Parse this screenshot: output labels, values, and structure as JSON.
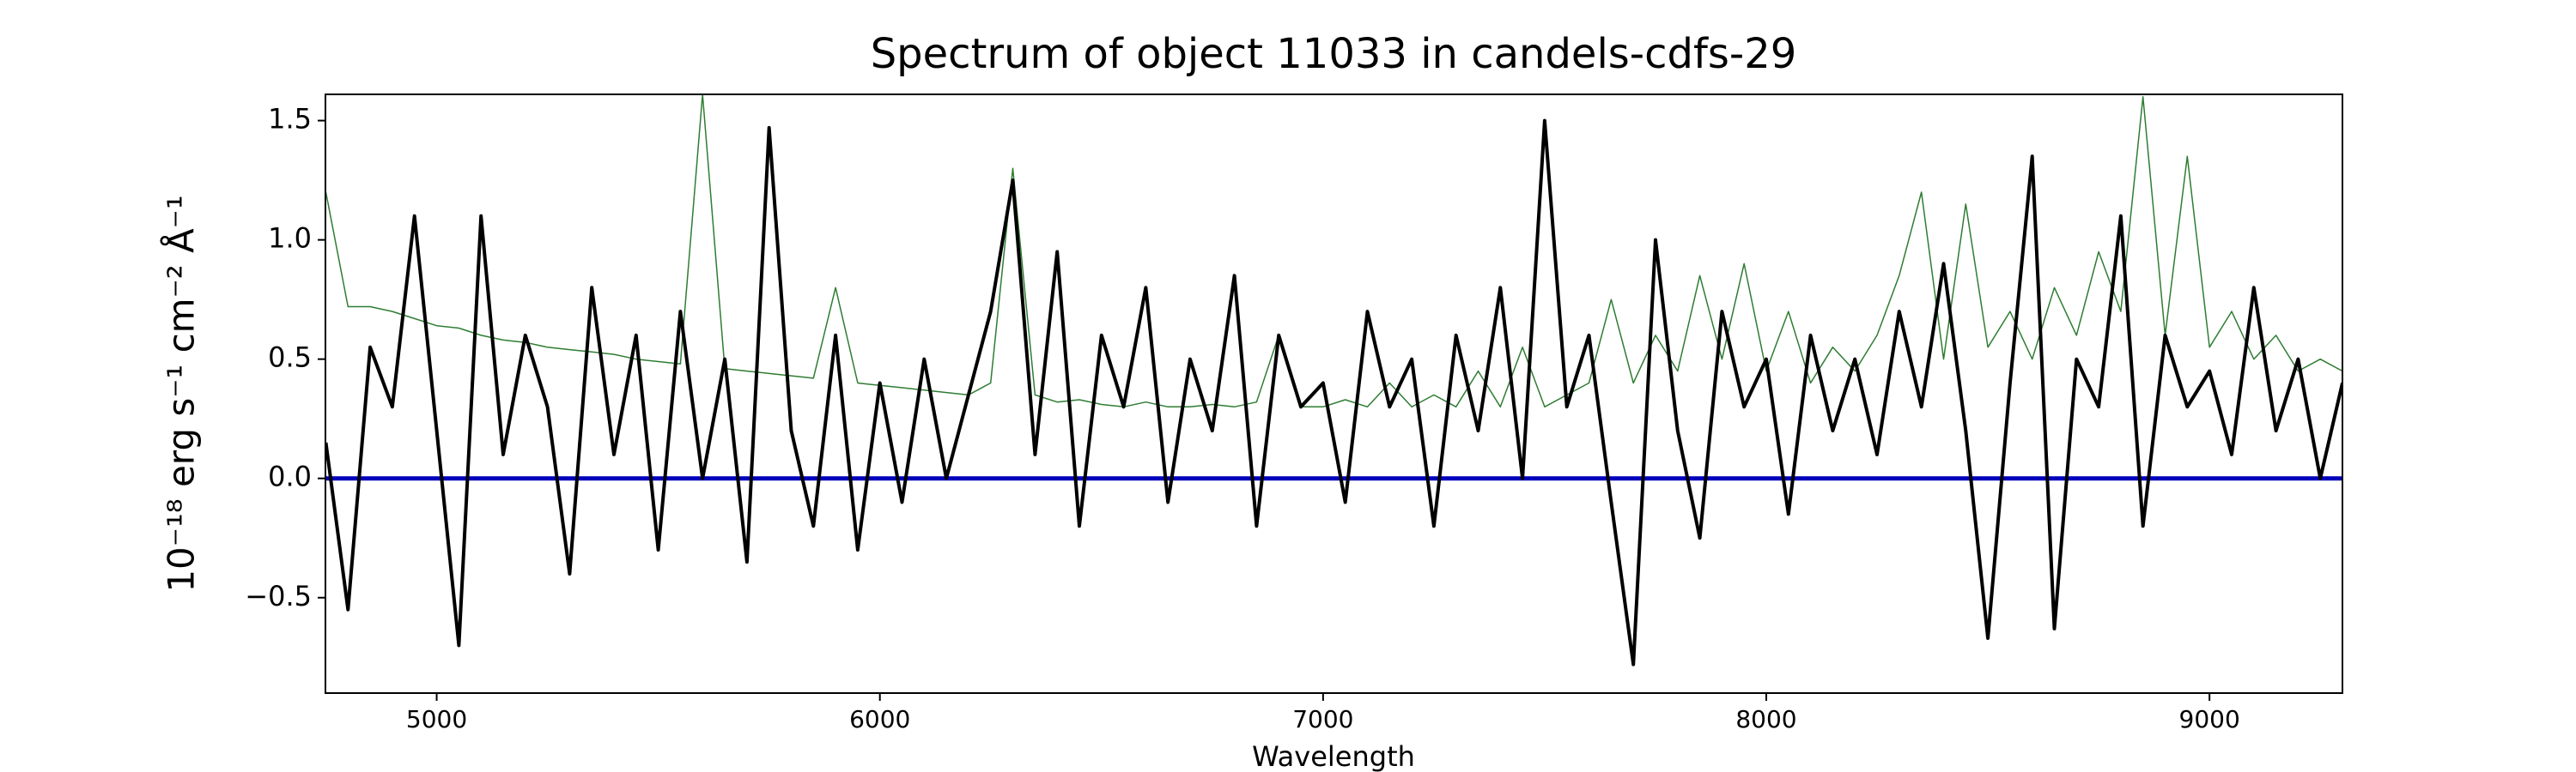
{
  "chart_data": {
    "type": "line",
    "title": "Spectrum of object 11033 in candels-cdfs-29",
    "x_label": "Wavelength",
    "y_label": "10⁻¹⁸ erg s⁻¹ cm⁻² Å⁻¹",
    "xlim": [
      4749,
      9300
    ],
    "ylim": [
      -0.9,
      1.61
    ],
    "xticks": [
      5000,
      6000,
      7000,
      8000,
      9000
    ],
    "yticks": [
      {
        "value": -0.5,
        "label": "−0.5"
      },
      {
        "value": 0,
        "label": "0.0"
      },
      {
        "value": 0.5,
        "label": "0.5"
      },
      {
        "value": 1,
        "label": "1.0"
      },
      {
        "value": 1.5,
        "label": "1.5"
      }
    ],
    "x": [
      4750,
      4800,
      4850,
      4900,
      4950,
      5000,
      5050,
      5100,
      5150,
      5200,
      5250,
      5300,
      5350,
      5400,
      5450,
      5500,
      5550,
      5600,
      5650,
      5700,
      5750,
      5800,
      5850,
      5900,
      5950,
      6000,
      6050,
      6100,
      6150,
      6200,
      6250,
      6300,
      6350,
      6400,
      6450,
      6500,
      6550,
      6600,
      6650,
      6700,
      6750,
      6800,
      6850,
      6900,
      6950,
      7000,
      7050,
      7100,
      7150,
      7200,
      7250,
      7300,
      7350,
      7400,
      7450,
      7500,
      7550,
      7600,
      7650,
      7700,
      7750,
      7800,
      7850,
      7900,
      7950,
      8000,
      8050,
      8100,
      8150,
      8200,
      8250,
      8300,
      8350,
      8400,
      8450,
      8500,
      8550,
      8600,
      8650,
      8700,
      8750,
      8800,
      8850,
      8900,
      8950,
      9000,
      9050,
      9100,
      9150,
      9200,
      9250,
      9300
    ],
    "series": [
      {
        "color": "#2e7d32",
        "width": 1.5,
        "values": [
          1.2,
          0.72,
          0.72,
          0.7,
          0.67,
          0.64,
          0.63,
          0.6,
          0.58,
          0.57,
          0.55,
          0.54,
          0.53,
          0.52,
          0.5,
          0.49,
          0.48,
          1.61,
          0.46,
          0.45,
          0.44,
          0.43,
          0.42,
          0.8,
          0.4,
          0.39,
          0.38,
          0.37,
          0.36,
          0.35,
          0.4,
          1.3,
          0.35,
          0.32,
          0.33,
          0.31,
          0.3,
          0.32,
          0.3,
          0.3,
          0.31,
          0.3,
          0.32,
          0.6,
          0.3,
          0.3,
          0.33,
          0.3,
          0.4,
          0.3,
          0.35,
          0.3,
          0.45,
          0.3,
          0.55,
          0.3,
          0.35,
          0.4,
          0.75,
          0.4,
          0.6,
          0.45,
          0.85,
          0.5,
          0.9,
          0.45,
          0.7,
          0.4,
          0.55,
          0.45,
          0.6,
          0.85,
          1.2,
          0.5,
          1.15,
          0.55,
          0.7,
          0.5,
          0.8,
          0.6,
          0.95,
          0.7,
          1.6,
          0.6,
          1.35,
          0.55,
          0.7,
          0.5,
          0.6,
          0.45,
          0.5,
          0.45
        ]
      },
      {
        "color": "#0000bb",
        "width": 5,
        "values": [
          0,
          0,
          0,
          0,
          0,
          0,
          0,
          0,
          0,
          0,
          0,
          0,
          0,
          0,
          0,
          0,
          0,
          0,
          0,
          0,
          0,
          0,
          0,
          0,
          0,
          0,
          0,
          0,
          0,
          0,
          0,
          0,
          0,
          0,
          0,
          0,
          0,
          0,
          0,
          0,
          0,
          0,
          0,
          0,
          0,
          0,
          0,
          0,
          0,
          0,
          0,
          0,
          0,
          0,
          0,
          0,
          0,
          0,
          0,
          0,
          0,
          0,
          0,
          0,
          0,
          0,
          0,
          0,
          0,
          0,
          0,
          0,
          0,
          0,
          0,
          0,
          0,
          0,
          0,
          0,
          0,
          0,
          0,
          0,
          0,
          0,
          0,
          0,
          0,
          0,
          0,
          0
        ]
      },
      {
        "color": "#000000",
        "width": 4,
        "values": [
          0.15,
          -0.55,
          0.55,
          0.3,
          1.1,
          0.2,
          -0.7,
          1.1,
          0.1,
          0.6,
          0.3,
          -0.4,
          0.8,
          0.1,
          0.6,
          -0.3,
          0.7,
          0.0,
          0.5,
          -0.35,
          1.47,
          0.2,
          -0.2,
          0.6,
          -0.3,
          0.4,
          -0.1,
          0.5,
          0.0,
          0.35,
          0.7,
          1.25,
          0.1,
          0.95,
          -0.2,
          0.6,
          0.3,
          0.8,
          -0.1,
          0.5,
          0.2,
          0.85,
          -0.2,
          0.6,
          0.3,
          0.4,
          -0.1,
          0.7,
          0.3,
          0.5,
          -0.2,
          0.6,
          0.2,
          0.8,
          0.0,
          1.5,
          0.3,
          0.6,
          -0.1,
          -0.78,
          1.0,
          0.2,
          -0.25,
          0.7,
          0.3,
          0.5,
          -0.15,
          0.6,
          0.2,
          0.5,
          0.1,
          0.7,
          0.3,
          0.9,
          0.2,
          -0.67,
          0.4,
          1.35,
          -0.63,
          0.5,
          0.3,
          1.1,
          -0.2,
          0.6,
          0.3,
          0.45,
          0.1,
          0.8,
          0.2,
          0.5,
          0.0,
          0.4
        ]
      }
    ]
  }
}
